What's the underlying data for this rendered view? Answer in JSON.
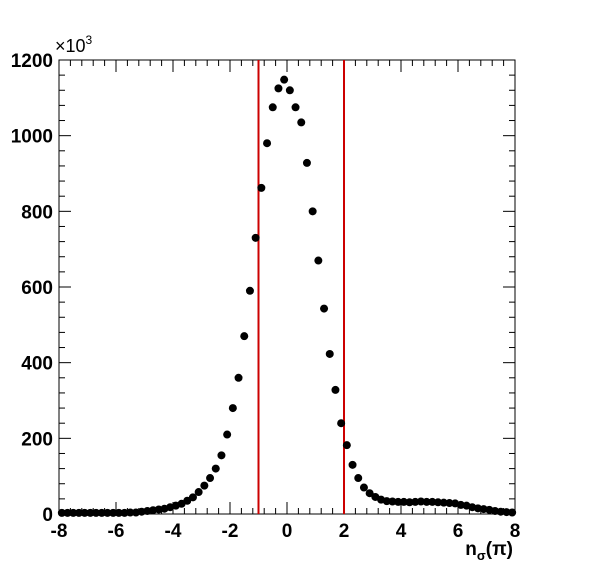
{
  "chart_data": {
    "type": "scatter",
    "title": "",
    "xlabel_main": "n",
    "xlabel_sub": "σ",
    "xlabel_arg": "(π)",
    "ylabel": "",
    "xlim": [
      -8,
      8
    ],
    "ylim": [
      0,
      1200
    ],
    "y_multiplier_base": "×10",
    "y_multiplier_exp": "3",
    "x_ticks": [
      -8,
      -6,
      -4,
      -2,
      0,
      2,
      4,
      6,
      8
    ],
    "y_ticks": [
      0,
      200,
      400,
      600,
      800,
      1000,
      1200
    ],
    "x_tick_labels": [
      "-8",
      "-6",
      "-4",
      "-2",
      "0",
      "2",
      "4",
      "6",
      "8"
    ],
    "y_tick_labels": [
      "0",
      "200",
      "400",
      "600",
      "800",
      "1000",
      "1200"
    ],
    "cut_lines": [
      -1,
      2
    ],
    "cut_line_color": "#cc0000",
    "marker_color": "#000000",
    "grid": false,
    "series": [
      {
        "x": [
          -7.9,
          -7.7,
          -7.5,
          -7.3,
          -7.1,
          -6.9,
          -6.7,
          -6.5,
          -6.3,
          -6.1,
          -5.9,
          -5.7,
          -5.5,
          -5.3,
          -5.1,
          -4.9,
          -4.7,
          -4.5,
          -4.3,
          -4.1,
          -3.9,
          -3.7,
          -3.5,
          -3.3,
          -3.1,
          -2.9,
          -2.7,
          -2.5,
          -2.3,
          -2.1,
          -1.9,
          -1.7,
          -1.5,
          -1.3,
          -1.1,
          -0.9,
          -0.7,
          -0.5,
          -0.3,
          -0.1,
          0.1,
          0.3,
          0.5,
          0.7,
          0.9,
          1.1,
          1.3,
          1.5,
          1.7,
          1.9,
          2.1,
          2.3,
          2.5,
          2.7,
          2.9,
          3.1,
          3.3,
          3.5,
          3.7,
          3.9,
          4.1,
          4.3,
          4.5,
          4.7,
          4.9,
          5.1,
          5.3,
          5.5,
          5.7,
          5.9,
          6.1,
          6.3,
          6.5,
          6.7,
          6.9,
          7.1,
          7.3,
          7.5,
          7.7,
          7.9
        ],
        "y": [
          3,
          3,
          3,
          3,
          3,
          3,
          3,
          3,
          3,
          3,
          3,
          3,
          4,
          4,
          6,
          8,
          10,
          12,
          14,
          18,
          22,
          27,
          35,
          44,
          58,
          75,
          95,
          120,
          155,
          210,
          280,
          360,
          470,
          590,
          730,
          862,
          980,
          1075,
          1125,
          1148,
          1120,
          1075,
          1035,
          928,
          800,
          670,
          543,
          423,
          328,
          240,
          182,
          130,
          95,
          70,
          55,
          45,
          38,
          34,
          33,
          32,
          32,
          31,
          32,
          33,
          32,
          32,
          31,
          30,
          29,
          28,
          24,
          22,
          18,
          15,
          13,
          11,
          8,
          6,
          5,
          4
        ]
      }
    ]
  }
}
